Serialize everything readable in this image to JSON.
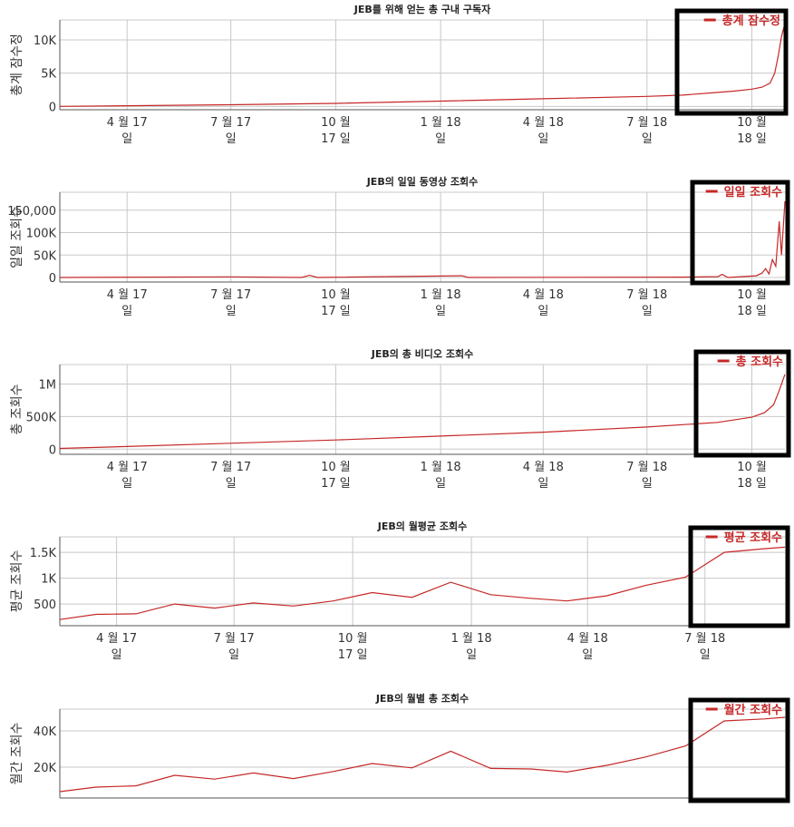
{
  "colors": {
    "line": "#c62828",
    "grid": "#c8c8c8",
    "axis": "#555555",
    "box": "#000000"
  },
  "x_labels": {
    "full": [
      [
        "4 월 17",
        "일"
      ],
      [
        "7 월 17",
        "일"
      ],
      [
        "10 월",
        "17 일"
      ],
      [
        "1 월 18",
        "일"
      ],
      [
        "4 월 18",
        "일"
      ],
      [
        "7 월 18",
        "일"
      ],
      [
        "10 월",
        "18 일"
      ]
    ],
    "monthly": [
      [
        "4 월 17",
        "일"
      ],
      [
        "7 월 17",
        "일"
      ],
      [
        "10 월",
        "17 일"
      ],
      [
        "1 월 18",
        "일"
      ],
      [
        "4 월 18",
        "일"
      ],
      [
        "7 월 18",
        "일"
      ]
    ]
  },
  "chart_data": [
    {
      "type": "line",
      "title": "JEB를 위해 얻는 총 구내 구독자",
      "ylabel": "총계 잠수정",
      "legend": "총계 잠수정",
      "legend_position": "top-right",
      "x_tick_dates": [
        "2017-04-01",
        "2017-07-01",
        "2017-10-01",
        "2018-01-01",
        "2018-04-01",
        "2018-07-01",
        "2018-10-01"
      ],
      "xlim": [
        "2017-02-01",
        "2018-10-30"
      ],
      "y_ticks": [
        "10K",
        "5K",
        "0"
      ],
      "y_tick_values": [
        10000,
        5000,
        0
      ],
      "ylim": [
        -500,
        13000
      ],
      "grid": true,
      "x": [
        "2017-02-01",
        "2017-04-01",
        "2017-07-01",
        "2017-10-01",
        "2018-01-01",
        "2018-04-01",
        "2018-07-01",
        "2018-08-01",
        "2018-09-01",
        "2018-09-15",
        "2018-10-01",
        "2018-10-10",
        "2018-10-17",
        "2018-10-21",
        "2018-10-24",
        "2018-10-27",
        "2018-10-30"
      ],
      "values": [
        0,
        100,
        250,
        450,
        800,
        1150,
        1500,
        1700,
        2100,
        2300,
        2600,
        2900,
        3500,
        5000,
        7500,
        10500,
        12500
      ]
    },
    {
      "type": "line",
      "title": "JEB의 일일 동영상 조회수",
      "ylabel": "일일 조회수",
      "legend": "일일 조회수",
      "legend_position": "top-right",
      "x_tick_dates": [
        "2017-04-01",
        "2017-07-01",
        "2017-10-01",
        "2018-01-01",
        "2018-04-01",
        "2018-07-01",
        "2018-10-01"
      ],
      "xlim": [
        "2017-02-01",
        "2018-10-30"
      ],
      "y_ticks": [
        "150,000",
        "100K",
        "50K",
        "0"
      ],
      "y_tick_values": [
        150000,
        100000,
        50000,
        0
      ],
      "ylim": [
        -10000,
        190000
      ],
      "grid": true,
      "x": [
        "2017-02-01",
        "2017-07-01",
        "2017-09-01",
        "2017-09-08",
        "2017-09-15",
        "2018-01-20",
        "2018-01-25",
        "2018-08-01",
        "2018-09-01",
        "2018-09-05",
        "2018-09-10",
        "2018-10-05",
        "2018-10-10",
        "2018-10-13",
        "2018-10-16",
        "2018-10-19",
        "2018-10-22",
        "2018-10-25",
        "2018-10-27",
        "2018-10-30"
      ],
      "values": [
        0,
        1500,
        0,
        5000,
        0,
        4000,
        0,
        1000,
        2000,
        7000,
        0,
        4000,
        10000,
        20000,
        8000,
        40000,
        25000,
        125000,
        50000,
        170000
      ]
    },
    {
      "type": "line",
      "title": "JEB의 총 비디오 조회수",
      "ylabel": "총 조회수",
      "legend": "총 조회수",
      "legend_position": "top-right",
      "x_tick_dates": [
        "2017-04-01",
        "2017-07-01",
        "2017-10-01",
        "2018-01-01",
        "2018-04-01",
        "2018-07-01",
        "2018-10-01"
      ],
      "xlim": [
        "2017-02-01",
        "2018-10-30"
      ],
      "y_ticks": [
        "1M",
        "500K",
        "0"
      ],
      "y_tick_values": [
        1000000,
        500000,
        0
      ],
      "ylim": [
        -80000,
        1300000
      ],
      "grid": true,
      "x": [
        "2017-02-01",
        "2017-04-01",
        "2017-07-01",
        "2017-10-01",
        "2018-01-01",
        "2018-04-01",
        "2018-07-01",
        "2018-09-01",
        "2018-10-01",
        "2018-10-12",
        "2018-10-20",
        "2018-10-25",
        "2018-10-30"
      ],
      "values": [
        10000,
        40000,
        90000,
        140000,
        200000,
        260000,
        340000,
        410000,
        490000,
        560000,
        680000,
        900000,
        1150000
      ]
    },
    {
      "type": "line",
      "title": "JEB의 월평균 조회수",
      "ylabel": "평균 조회수",
      "legend": "평균 조회수",
      "legend_position": "top-right",
      "x_tick_dates": [
        "2017-04-01",
        "2017-07-01",
        "2017-10-01",
        "2018-01-01",
        "2018-04-01",
        "2018-07-01"
      ],
      "xlim": [
        "2017-02-16",
        "2018-09-01"
      ],
      "y_ticks": [
        "1.5K",
        "1K",
        "500"
      ],
      "y_tick_values": [
        1500,
        1000,
        500
      ],
      "ylim": [
        80,
        1800
      ],
      "grid": true,
      "x": [
        "2017-02-16",
        "2017-03-16",
        "2017-04-16",
        "2017-05-16",
        "2017-06-16",
        "2017-07-16",
        "2017-08-16",
        "2017-09-16",
        "2017-10-16",
        "2017-11-16",
        "2017-12-16",
        "2018-01-16",
        "2018-02-16",
        "2018-03-16",
        "2018-04-16",
        "2018-05-16",
        "2018-06-16",
        "2018-07-16",
        "2018-08-16",
        "2018-09-01"
      ],
      "values": [
        200,
        300,
        310,
        500,
        420,
        520,
        460,
        560,
        720,
        630,
        920,
        680,
        610,
        560,
        660,
        860,
        1020,
        1500,
        1570,
        1600
      ]
    },
    {
      "type": "line",
      "title": "JEB의 월별 총 조회수",
      "ylabel": "월간 조회수",
      "legend": "월간 조회수",
      "legend_position": "top-right",
      "x_tick_dates": [],
      "xlim": [
        "2017-02-16",
        "2018-09-01"
      ],
      "y_ticks": [
        "40K",
        "20K"
      ],
      "y_tick_values": [
        40000,
        20000
      ],
      "ylim": [
        3000,
        52000
      ],
      "grid": true,
      "x": [
        "2017-02-16",
        "2017-03-16",
        "2017-04-16",
        "2017-05-16",
        "2017-06-16",
        "2017-07-16",
        "2017-08-16",
        "2017-09-16",
        "2017-10-16",
        "2017-11-16",
        "2017-12-16",
        "2018-01-16",
        "2018-02-16",
        "2018-03-16",
        "2018-04-16",
        "2018-05-16",
        "2018-06-16",
        "2018-07-16",
        "2018-08-16",
        "2018-09-01"
      ],
      "values": [
        6500,
        9000,
        9700,
        15500,
        13400,
        16800,
        13700,
        17600,
        22000,
        19600,
        28800,
        19300,
        19000,
        17300,
        21000,
        25600,
        31700,
        45500,
        46600,
        47500
      ]
    }
  ]
}
